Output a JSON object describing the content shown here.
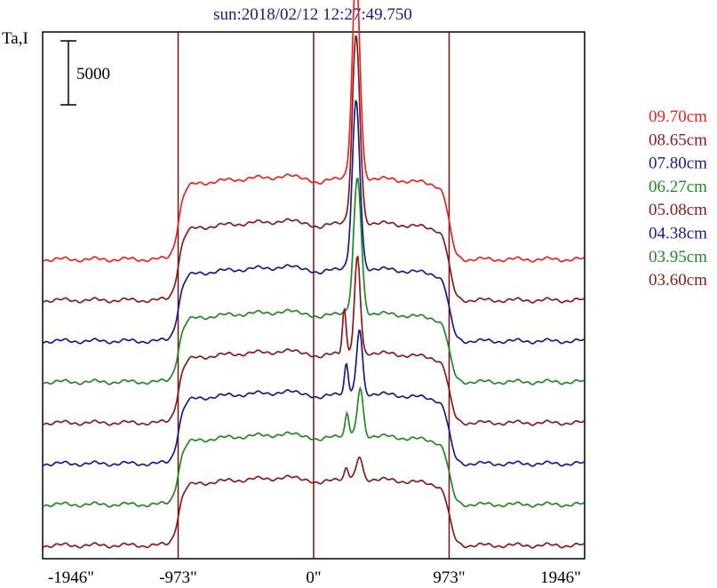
{
  "chart_data": {
    "type": "line",
    "title": "sun:2018/02/12 12:27:49.750",
    "ylabel": "Ta,I",
    "scale_bar_label": "5000",
    "scale_bar_value": 5000,
    "xlim": [
      -1946,
      1946
    ],
    "x_ticks": [
      -1946,
      -973,
      0,
      973,
      1946
    ],
    "x_tick_labels": [
      "-1946\"",
      "-973\"",
      "0\"",
      "973\"",
      "1946\""
    ],
    "vertical_lines": [
      -973,
      0,
      973
    ],
    "colors": {
      "frame": "#000000",
      "vline": "#6b1414",
      "title": "#1a1a8c"
    },
    "series": [
      {
        "name": "09.70cm",
        "color": "#ee2222",
        "offset": 8,
        "peak_x": 305,
        "peak": 16000,
        "plateau": 6500,
        "notch": false
      },
      {
        "name": "08.65cm",
        "color": "#8b1a1a",
        "offset": 7,
        "peak_x": 305,
        "peak": 14500,
        "plateau": 6200,
        "notch": false
      },
      {
        "name": "07.80cm",
        "color": "#1a1a8c",
        "offset": 6,
        "peak_x": 305,
        "peak": 13000,
        "plateau": 5800,
        "notch": false
      },
      {
        "name": "06.27cm",
        "color": "#1f8a1f",
        "offset": 5,
        "peak_x": 315,
        "peak": 10500,
        "plateau": 5500,
        "notch": false
      },
      {
        "name": "05.08cm",
        "color": "#8b1a1a",
        "offset": 4,
        "peak_x": 315,
        "peak": 7500,
        "plateau": 5600,
        "notch": true
      },
      {
        "name": "04.38cm",
        "color": "#1a1a8c",
        "offset": 3,
        "peak_x": 330,
        "peak": 5000,
        "plateau": 5600,
        "notch": true
      },
      {
        "name": "03.95cm",
        "color": "#1f8a1f",
        "offset": 2,
        "peak_x": 335,
        "peak": 3700,
        "plateau": 5500,
        "notch": true
      },
      {
        "name": "03.60cm",
        "color": "#8b1a1a",
        "offset": 1,
        "peak_x": 330,
        "peak": 1700,
        "plateau": 5300,
        "notch": true
      }
    ]
  }
}
